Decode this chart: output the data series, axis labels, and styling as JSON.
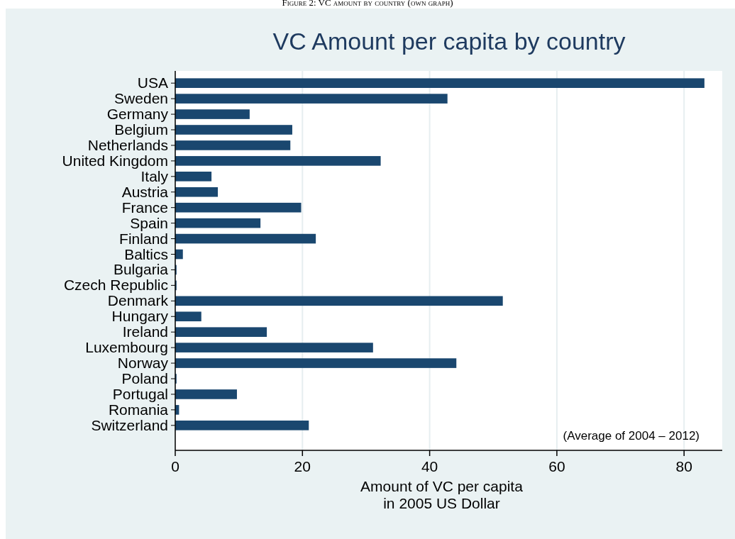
{
  "chart_data": {
    "type": "bar",
    "orientation": "horizontal",
    "title": "VC Amount per capita by country",
    "xlabel": "Amount of VC per capita\nin 2005 US Dollar",
    "categories": [
      "USA",
      "Sweden",
      "Germany",
      "Belgium",
      "Netherlands",
      "United Kingdom",
      "Italy",
      "Austria",
      "France",
      "Spain",
      "Finland",
      "Baltics",
      "Bulgaria",
      "Czech Republic",
      "Denmark",
      "Hungary",
      "Ireland",
      "Luxembourg",
      "Norway",
      "Poland",
      "Portugal",
      "Romania",
      "Switzerland"
    ],
    "values": [
      83.2,
      42.8,
      11.7,
      18.4,
      18.1,
      32.3,
      5.7,
      6.7,
      19.8,
      13.4,
      22.1,
      1.2,
      0.2,
      0.2,
      51.5,
      4.1,
      14.4,
      31.1,
      44.2,
      0.2,
      9.7,
      0.6,
      21.0
    ],
    "color": "#1a476f",
    "xlim": [
      0,
      86
    ],
    "xticks": [
      0,
      20,
      40,
      60,
      80
    ],
    "grid": "x",
    "annotations": [
      "Figure 2: VC amount by country (own graph)",
      "(Average of 2004 – 2012)"
    ]
  }
}
